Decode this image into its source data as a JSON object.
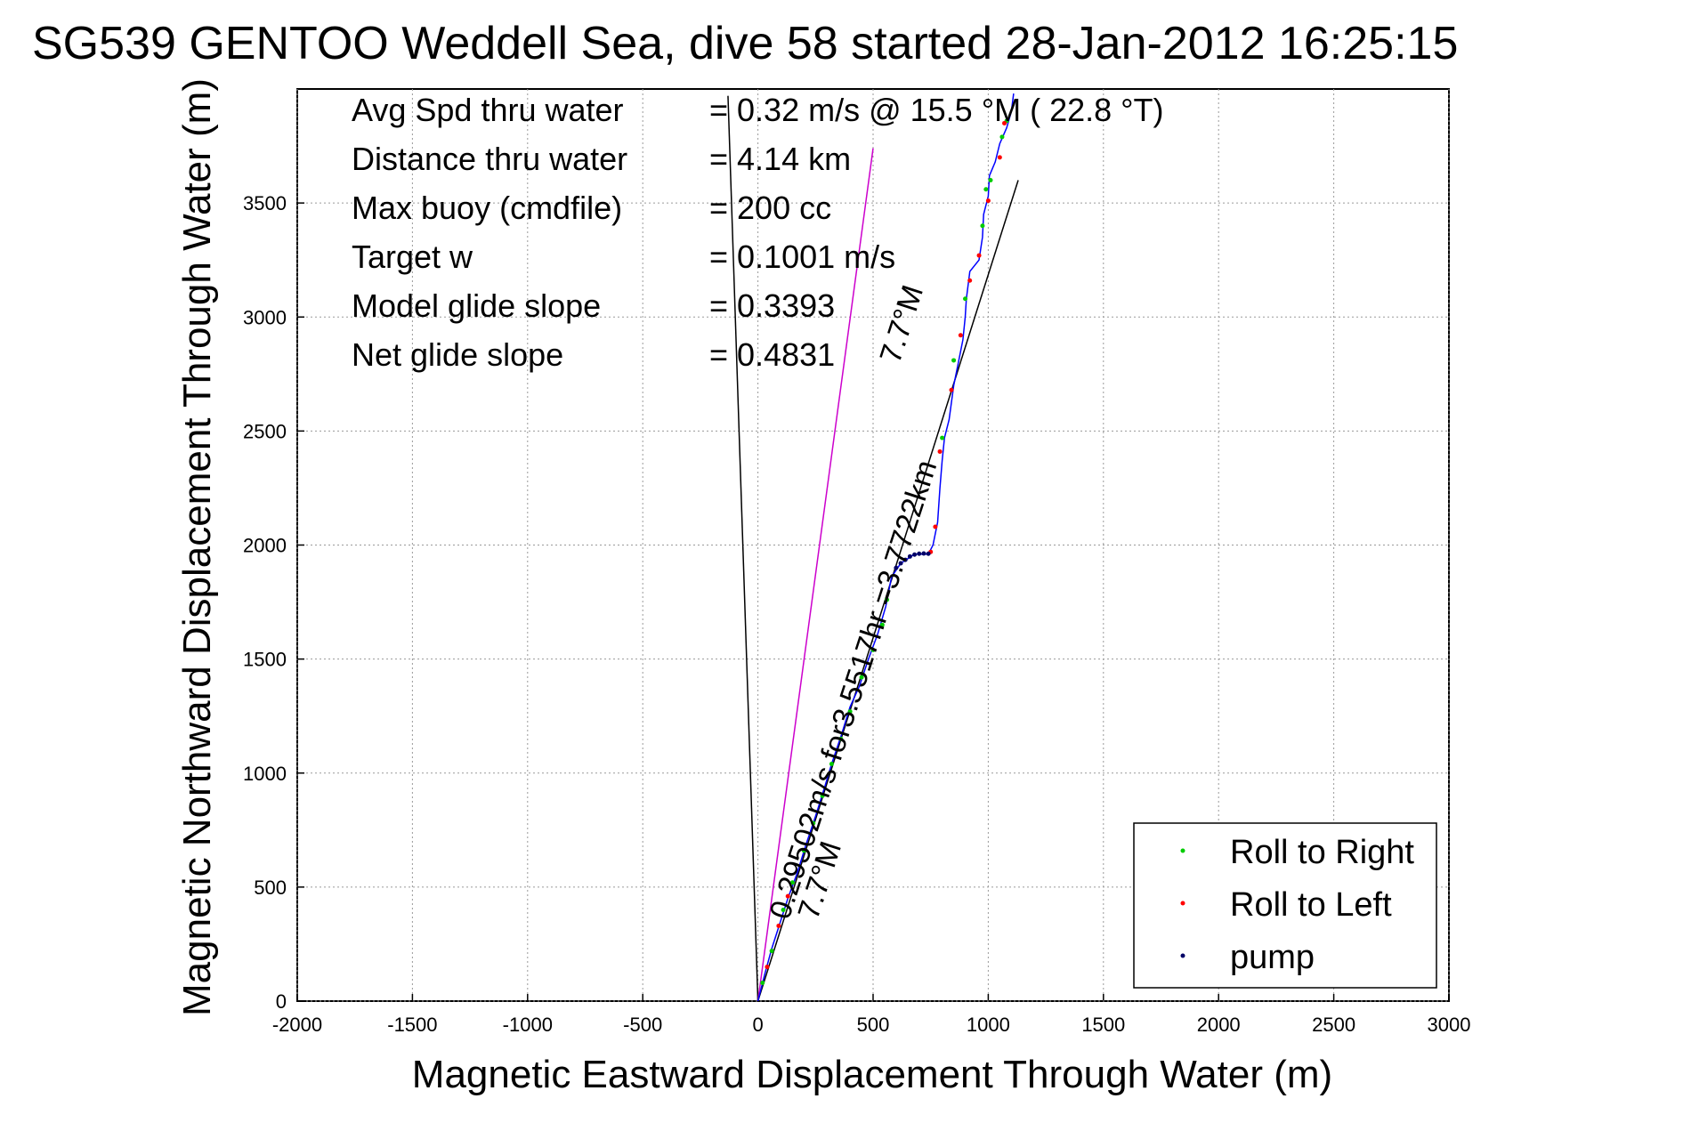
{
  "chart_data": {
    "type": "line",
    "title": "SG539 GENTOO Weddell Sea, dive 58 started 28-Jan-2012 16:25:15",
    "xlabel": "Magnetic Eastward Displacement Through Water (m)",
    "ylabel": "Magnetic Northward Displacement Through Water (m)",
    "xlim": [
      -2000,
      3000
    ],
    "ylim": [
      0,
      4000
    ],
    "xticks": [
      -2000,
      -1500,
      -1000,
      -500,
      0,
      500,
      1000,
      1500,
      2000,
      2500,
      3000
    ],
    "yticks": [
      0,
      500,
      1000,
      1500,
      2000,
      2500,
      3000,
      3500
    ],
    "grid": true,
    "legend_position": "bottom-right",
    "annotations": [
      {
        "label": "Avg Spd thru water",
        "value": "=  0.32 m/s @  15.5 °M ( 22.8 °T)"
      },
      {
        "label": "Distance thru water",
        "value": "=  4.14 km"
      },
      {
        "label": "Max buoy (cmdfile)",
        "value": "= 200 cc"
      },
      {
        "label": "Target w",
        "value": "= 0.1001 m/s"
      },
      {
        "label": "Model glide slope",
        "value": "= 0.3393"
      },
      {
        "label": "Net glide slope",
        "value": "= 0.4831"
      }
    ],
    "rotated_labels": {
      "current_vector": "0.29502m/s for3.5517hr =3.7722km",
      "heading_top": "7.7°M",
      "heading_bottom": "7.7°M"
    },
    "lines": [
      {
        "name": "black-reference-line-left",
        "color": "#000000",
        "points": [
          [
            0,
            0
          ],
          [
            -130,
            3970
          ]
        ]
      },
      {
        "name": "magenta-reference-line",
        "color": "#cc00cc",
        "points": [
          [
            0,
            0
          ],
          [
            500,
            3740
          ]
        ]
      },
      {
        "name": "black-reference-line-right",
        "color": "#000000",
        "points": [
          [
            0,
            0
          ],
          [
            1130,
            3600
          ]
        ]
      }
    ],
    "series": [
      {
        "name": "track",
        "color": "#0000ff",
        "values": [
          [
            0,
            0
          ],
          [
            30,
            120
          ],
          [
            60,
            230
          ],
          [
            95,
            340
          ],
          [
            130,
            450
          ],
          [
            170,
            560
          ],
          [
            210,
            690
          ],
          [
            250,
            810
          ],
          [
            290,
            940
          ],
          [
            320,
            1040
          ],
          [
            360,
            1160
          ],
          [
            400,
            1290
          ],
          [
            440,
            1380
          ],
          [
            480,
            1500
          ],
          [
            520,
            1610
          ],
          [
            555,
            1730
          ],
          [
            580,
            1860
          ],
          [
            620,
            1920
          ],
          [
            680,
            1960
          ],
          [
            740,
            1960
          ],
          [
            760,
            2000
          ],
          [
            780,
            2100
          ],
          [
            790,
            2250
          ],
          [
            800,
            2370
          ],
          [
            810,
            2470
          ],
          [
            830,
            2550
          ],
          [
            850,
            2700
          ],
          [
            870,
            2800
          ],
          [
            890,
            2900
          ],
          [
            900,
            3000
          ],
          [
            905,
            3080
          ],
          [
            920,
            3200
          ],
          [
            960,
            3250
          ],
          [
            975,
            3350
          ],
          [
            980,
            3450
          ],
          [
            1000,
            3530
          ],
          [
            1005,
            3620
          ],
          [
            1030,
            3680
          ],
          [
            1050,
            3760
          ],
          [
            1080,
            3830
          ],
          [
            1100,
            3900
          ],
          [
            1110,
            3980
          ]
        ]
      },
      {
        "name": "Roll to Right",
        "color": "#00cc00",
        "marker": "dot",
        "values": [
          [
            20,
            80
          ],
          [
            60,
            220
          ],
          [
            110,
            400
          ],
          [
            150,
            520
          ],
          [
            200,
            660
          ],
          [
            240,
            780
          ],
          [
            280,
            900
          ],
          [
            320,
            1040
          ],
          [
            360,
            1150
          ],
          [
            400,
            1270
          ],
          [
            450,
            1420
          ],
          [
            500,
            1540
          ],
          [
            540,
            1650
          ],
          [
            560,
            1760
          ],
          [
            800,
            2470
          ],
          [
            850,
            2810
          ],
          [
            900,
            3080
          ],
          [
            975,
            3400
          ],
          [
            990,
            3560
          ],
          [
            1010,
            3600
          ],
          [
            1060,
            3790
          ],
          [
            1080,
            3860
          ]
        ]
      },
      {
        "name": "Roll to Left",
        "color": "#ff0000",
        "marker": "dot",
        "values": [
          [
            40,
            150
          ],
          [
            90,
            330
          ],
          [
            130,
            460
          ],
          [
            770,
            2080
          ],
          [
            790,
            2410
          ],
          [
            840,
            2680
          ],
          [
            880,
            2920
          ],
          [
            920,
            3160
          ],
          [
            960,
            3270
          ],
          [
            1000,
            3510
          ],
          [
            1050,
            3700
          ],
          [
            1070,
            3850
          ],
          [
            750,
            1970
          ]
        ]
      },
      {
        "name": "pump",
        "color": "#000066",
        "marker": "dot",
        "values": [
          [
            600,
            1900
          ],
          [
            620,
            1920
          ],
          [
            640,
            1935
          ],
          [
            660,
            1950
          ],
          [
            680,
            1958
          ],
          [
            700,
            1962
          ],
          [
            720,
            1963
          ],
          [
            740,
            1962
          ]
        ]
      }
    ]
  }
}
